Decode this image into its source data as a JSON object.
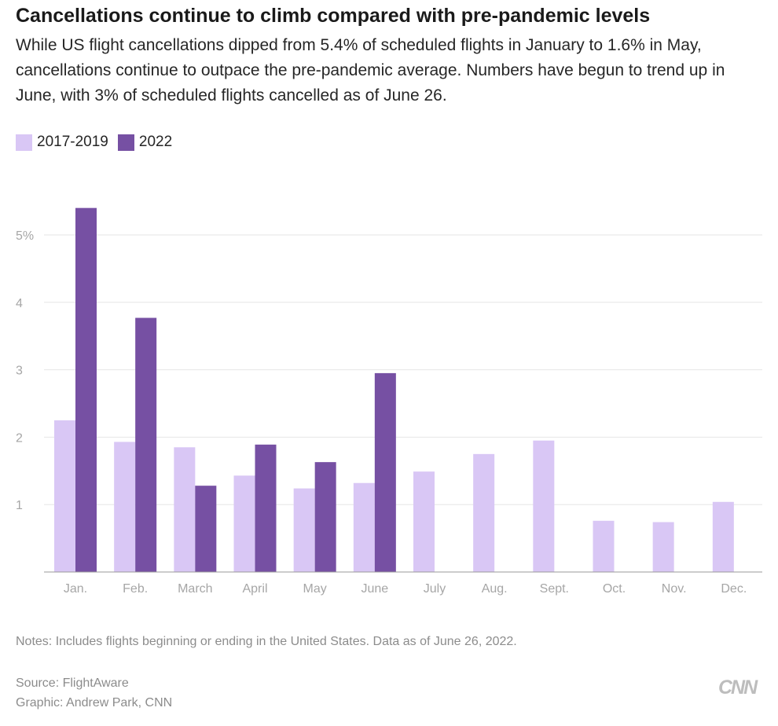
{
  "header": {
    "title": "Cancellations continue to climb compared with pre-pandemic levels",
    "subtitle": "While US flight cancellations dipped from 5.4% of scheduled flights in January to 1.6% in May, cancellations continue to outpace the pre-pandemic average. Numbers have begun to trend up in June, with 3% of scheduled flights cancelled as of June 26."
  },
  "legend": {
    "items": [
      {
        "label": "2017-2019",
        "color": "#d9c7f5"
      },
      {
        "label": "2022",
        "color": "#7650a3"
      }
    ]
  },
  "chart_data": {
    "type": "bar",
    "title": "Cancellations continue to climb compared with pre-pandemic levels",
    "categories": [
      "Jan.",
      "Feb.",
      "March",
      "April",
      "May",
      "June",
      "July",
      "Aug.",
      "Sept.",
      "Oct.",
      "Nov.",
      "Dec."
    ],
    "series": [
      {
        "name": "2017-2019",
        "color": "#d9c7f5",
        "values": [
          2.25,
          1.93,
          1.85,
          1.43,
          1.24,
          1.32,
          1.49,
          1.75,
          1.95,
          0.76,
          0.74,
          1.04
        ]
      },
      {
        "name": "2022",
        "color": "#7650a3",
        "values": [
          5.4,
          3.77,
          1.28,
          1.89,
          1.63,
          2.95,
          null,
          null,
          null,
          null,
          null,
          null
        ]
      }
    ],
    "yticks": [
      {
        "value": 1,
        "label": "1"
      },
      {
        "value": 2,
        "label": "2"
      },
      {
        "value": 3,
        "label": "3"
      },
      {
        "value": 4,
        "label": "4"
      },
      {
        "value": 5,
        "label": "5%"
      }
    ],
    "ylim": [
      0,
      5.6
    ],
    "grid": true,
    "legend_position": "top-left"
  },
  "footer": {
    "notes": "Notes: Includes flights beginning or ending in the United States. Data as of June 26, 2022.",
    "source": "Source: FlightAware",
    "credit": "Graphic: Andrew Park, CNN",
    "logo_text": "CNN"
  }
}
